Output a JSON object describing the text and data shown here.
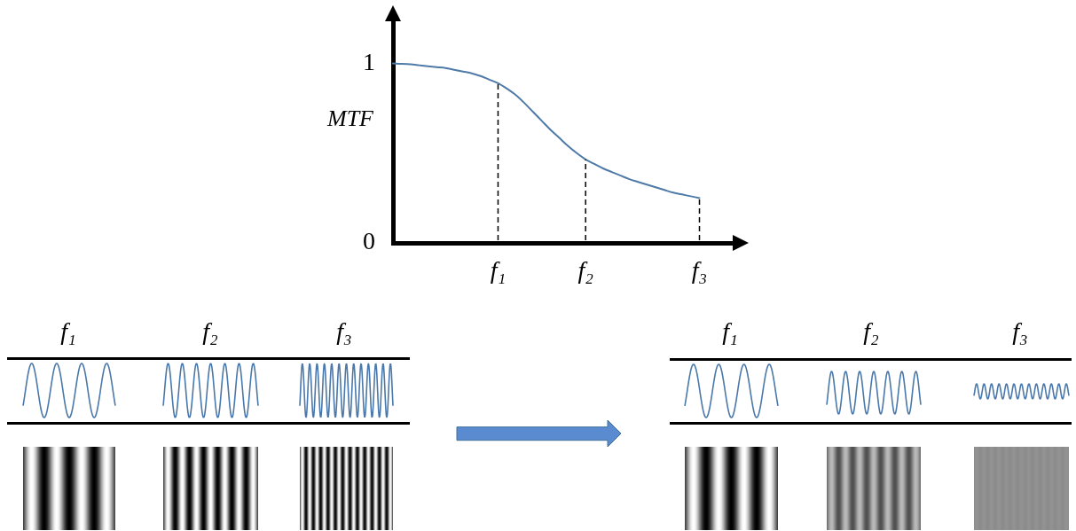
{
  "chart_data": {
    "type": "line",
    "color": "#4e7aa8",
    "ylabel": "MTF",
    "categories": [
      null,
      null,
      null,
      null,
      null,
      null,
      null,
      null,
      null,
      null,
      null,
      null,
      "f₁",
      null,
      null,
      null,
      null,
      null,
      null,
      null,
      null,
      null,
      "f₂",
      null,
      null,
      null,
      null,
      null,
      null,
      null,
      null,
      null,
      null,
      null,
      null,
      "f₃",
      null,
      null,
      null,
      null
    ],
    "values": [
      1,
      0.998,
      0.995,
      0.99,
      0.985,
      0.98,
      0.975,
      0.965,
      0.955,
      0.945,
      0.93,
      0.91,
      0.89,
      0.86,
      0.825,
      0.78,
      0.73,
      0.68,
      0.63,
      0.585,
      0.54,
      0.5,
      0.465,
      0.44,
      0.415,
      0.395,
      0.375,
      0.355,
      0.34,
      0.325,
      0.31,
      0.295,
      0.28,
      0.27,
      0.26,
      0.25,
      null,
      null,
      null,
      null
    ],
    "ylim": [
      0,
      1.25
    ],
    "yticks": [
      0,
      1
    ],
    "ref_lines": [
      {
        "axis": "x",
        "value": "f₁",
        "color": "#000000",
        "line_style": "dashed"
      },
      {
        "axis": "x",
        "value": "f₂",
        "color": "#000000",
        "line_style": "dashed"
      },
      {
        "axis": "x",
        "value": "f₃",
        "color": "#000000",
        "line_style": "dashed"
      }
    ],
    "annotations": [
      "f₁",
      "f₂",
      "f₃",
      "f₁",
      "f₂",
      "f₃"
    ]
  }
}
